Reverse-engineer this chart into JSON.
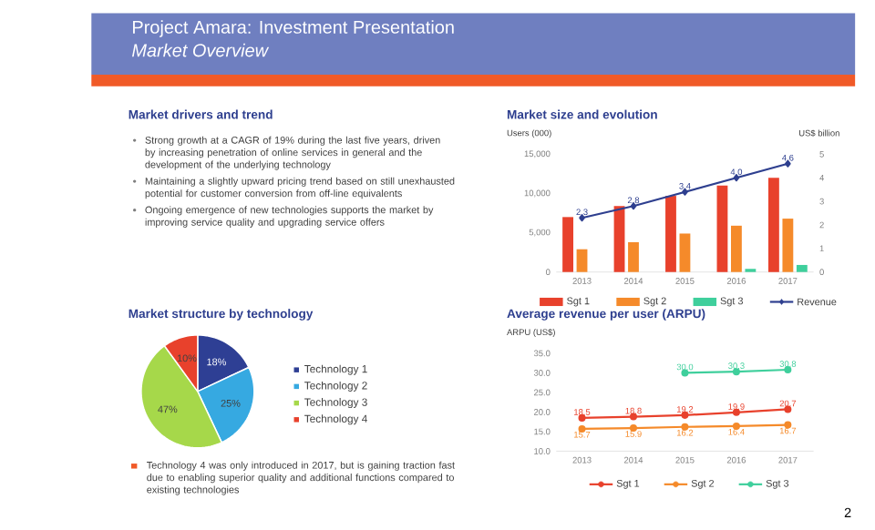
{
  "chart_data": [
    {
      "type": "other",
      "title": "Project Amara: Investment Presentation",
      "subtitle": "Market Overview",
      "annotations": [
        "2"
      ]
    },
    {
      "type": "other",
      "title": "Market drivers and trend",
      "annotations": [
        "Strong growth at a CAGR of 19% during the last five years, driven by increasing penetration of online services in general and the development of the underlying technology",
        "Maintaining a slightly upward pricing trend based on still unexhausted potential for customer conversion from off-line equivalents",
        "Ongoing emergence of new technologies supports the market by improving service quality and upgrading service offers"
      ]
    },
    {
      "type": "bar",
      "title": "Market size and evolution",
      "ylabel": "Users (000)",
      "y2label": "US$ billion",
      "categories": [
        "2013",
        "2014",
        "2015",
        "2016",
        "2017"
      ],
      "series": [
        {
          "name": "Sgt 1",
          "color": "#e8412c",
          "values": [
            7000,
            8400,
            9700,
            11000,
            12000
          ]
        },
        {
          "name": "Sgt 2",
          "color": "#f58a2a",
          "values": [
            2900,
            3800,
            4900,
            5900,
            6800
          ]
        },
        {
          "name": "Sgt 3",
          "color": "#3fcf9c",
          "values": [
            null,
            null,
            null,
            400,
            900
          ]
        },
        {
          "name": "Revenue",
          "type": "line",
          "axis": "y2",
          "color": "#2e3f8f",
          "values": [
            2.3,
            2.8,
            3.4,
            4.0,
            4.6
          ],
          "value_labels": [
            "2.3",
            "2.8",
            "3.4",
            "4.0",
            "4.6"
          ]
        }
      ],
      "ylim": [
        0,
        15000
      ],
      "yticks": [
        0,
        {
          "value": 5000,
          "label": "5,000"
        },
        {
          "value": 10000,
          "label": "10,000"
        },
        {
          "value": 15000,
          "label": "15,000"
        }
      ],
      "y2lim": [
        0,
        5
      ],
      "y2ticks": [
        0,
        1,
        2,
        3,
        4,
        5
      ],
      "legend": "bottom",
      "marker": "diamond"
    },
    {
      "type": "pie",
      "title": "Market structure by technology",
      "categories": [
        "Technology 1",
        "Technology 2",
        "Technology 3",
        "Technology 4"
      ],
      "values": [
        18,
        25,
        47,
        10
      ],
      "colors": [
        "#2e3f94",
        "#36a9e1",
        "#a6d84a",
        "#e8412c"
      ],
      "value_labels": [
        "18%",
        "25%",
        "47%",
        "10%"
      ],
      "legend": "right",
      "annotations": [
        "Technology 4 was only introduced in 2017, but is gaining traction fast due to enabling superior quality and additional functions compared to existing technologies"
      ]
    },
    {
      "type": "line",
      "title": "Average revenue per user (ARPU)",
      "ylabel": "ARPU (US$)",
      "categories": [
        "2013",
        "2014",
        "2015",
        "2016",
        "2017"
      ],
      "series": [
        {
          "name": "Sgt 1",
          "color": "#e8412c",
          "values": [
            18.5,
            18.8,
            19.2,
            19.9,
            20.7
          ],
          "value_labels": [
            "18.5",
            "18.8",
            "19.2",
            "19.9",
            "20.7"
          ]
        },
        {
          "name": "Sgt 2",
          "color": "#f58a2a",
          "values": [
            15.7,
            15.9,
            16.2,
            16.4,
            16.7
          ],
          "value_labels": [
            "15.7",
            "15.9",
            "16.2",
            "16.4",
            "16.7"
          ]
        },
        {
          "name": "Sgt 3",
          "color": "#3fcf9c",
          "values": [
            null,
            null,
            30.0,
            30.3,
            30.8
          ],
          "value_labels": [
            null,
            null,
            "30.0",
            "30.3",
            "30.8"
          ]
        }
      ],
      "ylim": [
        10,
        35
      ],
      "yticks": [
        {
          "value": 10,
          "label": "10.0"
        },
        {
          "value": 15,
          "label": "15.0"
        },
        {
          "value": 20,
          "label": "20.0"
        },
        {
          "value": 25,
          "label": "25.0"
        },
        {
          "value": 30,
          "label": "30.0"
        },
        {
          "value": 35,
          "label": "35.0"
        }
      ],
      "legend": "bottom",
      "marker": "circle",
      "line_style": "solid"
    }
  ]
}
